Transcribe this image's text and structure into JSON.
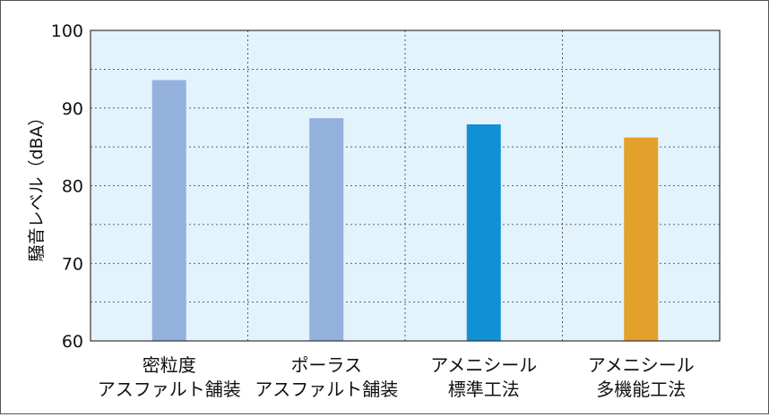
{
  "chart_data": {
    "type": "bar",
    "ylabel": "騒音レベル（dBA）",
    "ylim": [
      60,
      100
    ],
    "yticks": [
      60,
      70,
      80,
      90,
      100
    ],
    "categories": [
      [
        "密粒度",
        "アスファルト舗装"
      ],
      [
        "ポーラス",
        "アスファルト舗装"
      ],
      [
        "アメニシール",
        "標準工法"
      ],
      [
        "アメニシール",
        "多機能工法"
      ]
    ],
    "values": [
      93.6,
      88.7,
      87.9,
      86.2
    ],
    "bar_colors": [
      "#94b1de",
      "#94b1de",
      "#1090d5",
      "#e3a02a"
    ],
    "grid": true
  },
  "colors": {
    "plot_background": "#e3f3fc",
    "grid": "#333333"
  }
}
